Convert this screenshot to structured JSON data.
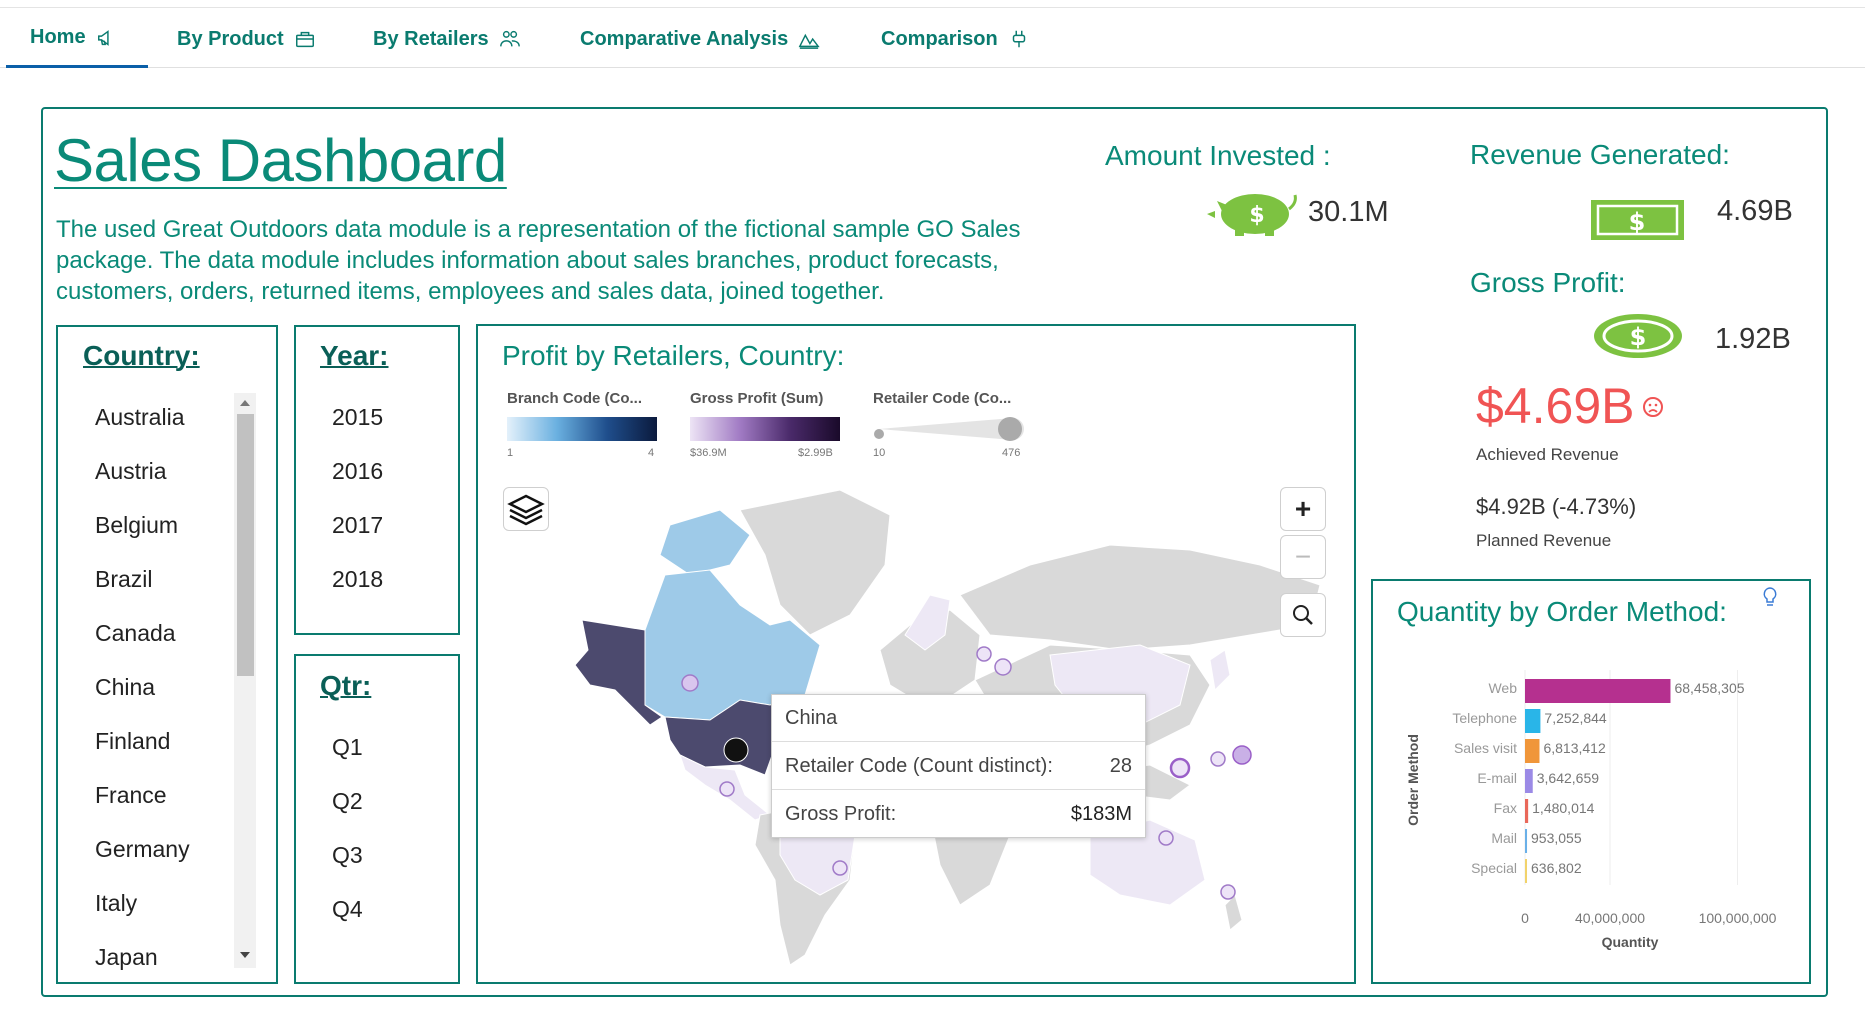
{
  "nav": {
    "tabs": [
      {
        "label": "Home",
        "icon": "megaphone-icon"
      },
      {
        "label": "By Product",
        "icon": "briefcase-icon"
      },
      {
        "label": "By Retailers",
        "icon": "people-icon"
      },
      {
        "label": "Comparative Analysis",
        "icon": "mountains-icon"
      },
      {
        "label": "Comparison",
        "icon": "plug-icon"
      }
    ]
  },
  "header": {
    "title": "Sales Dashboard",
    "description": "The used Great Outdoors data module is a representation of the fictional sample GO Sales package. The data module includes information about sales branches, product forecasts, customers, orders, returned items, employees and sales data, joined together."
  },
  "kpis": {
    "amount_invested_label": "Amount Invested :",
    "amount_invested_value": "30.1M",
    "revenue_generated_label": "Revenue Generated:",
    "revenue_generated_value": "4.69B",
    "gross_profit_label": "Gross Profit:",
    "gross_profit_value": "1.92B",
    "achieved_revenue_value": "$4.69B",
    "achieved_revenue_label": "Achieved Revenue",
    "planned_revenue_value": "$4.92B (-4.73%)",
    "planned_revenue_label": "Planned Revenue"
  },
  "filters": {
    "country_title": "Country:",
    "countries": [
      "Australia",
      "Austria",
      "Belgium",
      "Brazil",
      "Canada",
      "China",
      "Finland",
      "France",
      "Germany",
      "Italy",
      "Japan"
    ],
    "year_title": "Year:",
    "years": [
      "2015",
      "2016",
      "2017",
      "2018"
    ],
    "qtr_title": "Qtr:",
    "quarters": [
      "Q1",
      "Q2",
      "Q3",
      "Q4"
    ]
  },
  "map": {
    "title": "Profit by Retailers, Country:",
    "legend": [
      {
        "label": "Branch Code (Co...",
        "min": "1",
        "max": "4"
      },
      {
        "label": "Gross Profit (Sum)",
        "min": "$36.9M",
        "max": "$2.99B"
      },
      {
        "label": "Retailer Code (Co...",
        "min": "10",
        "max": "476"
      }
    ],
    "zoom_in": "+",
    "zoom_out": "−",
    "tooltip": {
      "country": "China",
      "row1_label": "Retailer Code (Count distinct):",
      "row1_value": "28",
      "row2_label": "Gross Profit:",
      "row2_value": "$183M"
    }
  },
  "colors": {
    "accent": "#0a8a78",
    "border": "#0a7b6f",
    "negative": "#f05454",
    "money_green": "#7dc241"
  },
  "chart_data": {
    "type": "bar",
    "title": "Quantity by Order Method:",
    "ylabel": "Order Method",
    "xlabel": "Quantity",
    "categories": [
      "Web",
      "Telephone",
      "Sales visit",
      "E-mail",
      "Fax",
      "Mail",
      "Special"
    ],
    "values": [
      68458305,
      7252844,
      6813412,
      3642659,
      1480014,
      953055,
      636802
    ],
    "value_labels": [
      "68,458,305",
      "7,252,844",
      "6,813,412",
      "3,642,659",
      "1,480,014",
      "953,055",
      "636,802"
    ],
    "colors": [
      "#b5308f",
      "#29b5e8",
      "#f0963a",
      "#9b8ae6",
      "#e9685a",
      "#6ab0e8",
      "#f2d36b"
    ],
    "xlim": [
      0,
      120000000
    ],
    "xticks": [
      "0",
      "40,000,000",
      "100,000,000"
    ]
  }
}
